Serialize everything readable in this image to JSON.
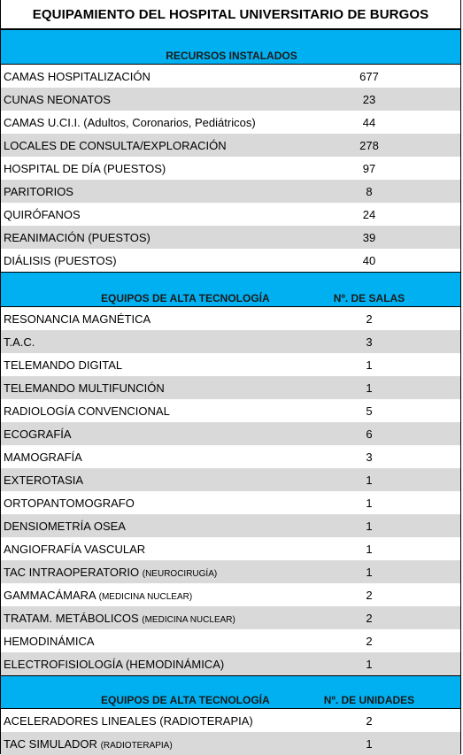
{
  "title": "EQUIPAMIENTO DEL  HOSPITAL UNIVERSITARIO DE BURGOS",
  "section1": {
    "header": "RECURSOS INSTALADOS",
    "rows": [
      {
        "name": "CAMAS HOSPITALIZACIÓN",
        "note": "",
        "value": "677"
      },
      {
        "name": "CUNAS NEONATOS",
        "note": "",
        "value": "23"
      },
      {
        "name": "CAMAS U.CI.I. (Adultos, Coronarios, Pediátricos)",
        "note": "",
        "value": "44"
      },
      {
        "name": "LOCALES DE CONSULTA/EXPLORACIÓN",
        "note": "",
        "value": "278"
      },
      {
        "name": "HOSPITAL DE DÍA (PUESTOS)",
        "note": "",
        "value": "97"
      },
      {
        "name": "PARITORIOS",
        "note": "",
        "value": "8"
      },
      {
        "name": "QUIRÓFANOS",
        "note": "",
        "value": "24"
      },
      {
        "name": " REANIMACIÓN (PUESTOS)",
        "note": "",
        "value": "39"
      },
      {
        "name": "DIÁLISIS (PUESTOS)",
        "note": "",
        "value": "40"
      }
    ]
  },
  "section2": {
    "header": "EQUIPOS DE ALTA TECNOLOGÍA",
    "header_col2": "Nº. DE SALAS",
    "rows": [
      {
        "name": "RESONANCIA MAGNÉTICA",
        "note": "",
        "value": "2"
      },
      {
        "name": "T.A.C.",
        "note": "",
        "value": "3"
      },
      {
        "name": "TELEMANDO DIGITAL",
        "note": "",
        "value": "1"
      },
      {
        "name": "TELEMANDO MULTIFUNCIÓN",
        "note": "",
        "value": "1"
      },
      {
        "name": "RADIOLOGÍA CONVENCIONAL",
        "note": "",
        "value": "5"
      },
      {
        "name": "ECOGRAFÍA",
        "note": "",
        "value": "6"
      },
      {
        "name": "MAMOGRAFÍA",
        "note": "",
        "value": "3"
      },
      {
        "name": "EXTEROTASIA",
        "note": "",
        "value": "1"
      },
      {
        "name": "ORTOPANTOMOGRAFO",
        "note": "",
        "value": "1"
      },
      {
        "name": "DENSIOMETRÍA OSEA",
        "note": "",
        "value": "1"
      },
      {
        "name": "ANGIOFRAFÍA VASCULAR",
        "note": "",
        "value": "1"
      },
      {
        "name": "TAC  INTRAOPERATORIO ",
        "note": "(NEUROCIRUGÍA)",
        "value": "1"
      },
      {
        "name": "GAMMACÁMARA  ",
        "note": "(MEDICINA NUCLEAR)",
        "value": "2"
      },
      {
        "name": "TRATAM. METÁBOLICOS  ",
        "note": "(MEDICINA NUCLEAR)",
        "value": "2"
      },
      {
        "name": "HEMODINÁMICA",
        "note": "",
        "value": "2"
      },
      {
        "name": "ELECTROFISIOLOGÍA (HEMODINÁMICA)",
        "note": "",
        "value": "1"
      }
    ]
  },
  "section3": {
    "header": "EQUIPOS DE ALTA TECNOLOGÍA",
    "header_col2": "Nº. DE UNIDADES",
    "rows": [
      {
        "name": "ACELERADORES LINEALES (RADIOTERAPIA)",
        "note": "",
        "value": "2"
      },
      {
        "name": "TAC  SIMULADOR ",
        "note": "(RADIOTERAPIA)",
        "value": "1"
      }
    ]
  }
}
